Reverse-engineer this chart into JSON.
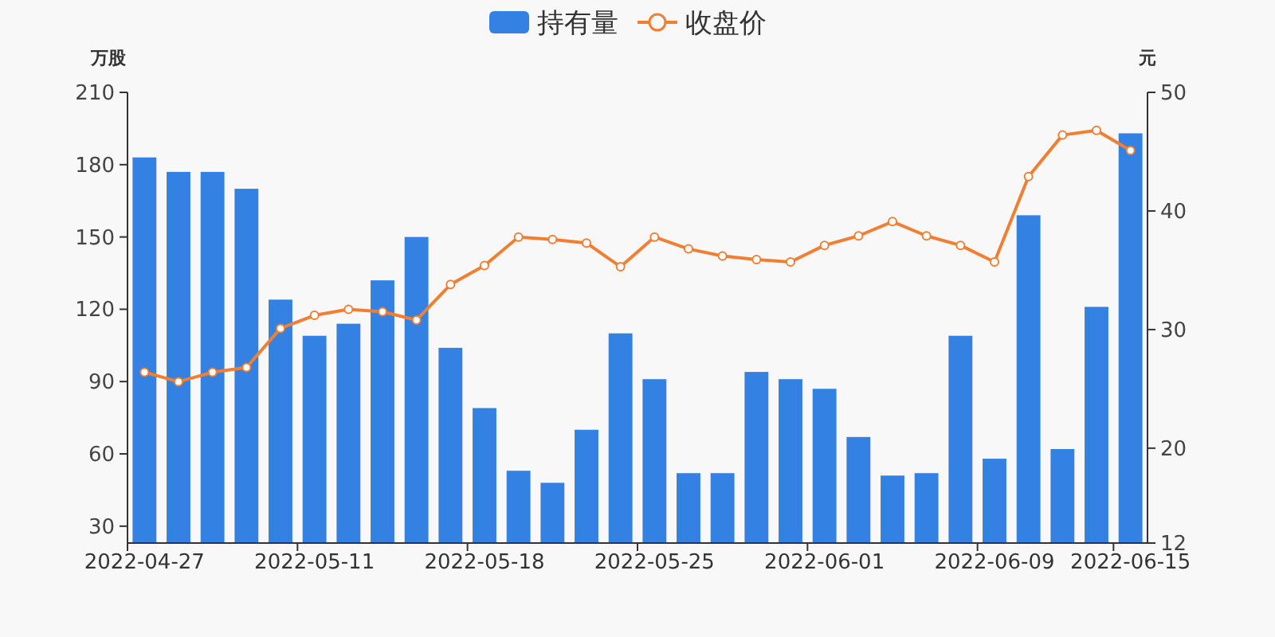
{
  "chart_data": {
    "type": "bar",
    "categories": [
      "2022-04-27",
      null,
      null,
      null,
      null,
      "2022-05-11",
      null,
      null,
      null,
      null,
      "2022-05-18",
      null,
      null,
      null,
      null,
      "2022-05-25",
      null,
      null,
      null,
      null,
      "2022-06-01",
      null,
      null,
      null,
      null,
      "2022-06-09",
      null,
      null,
      null,
      "2022-06-15"
    ],
    "series": [
      {
        "name": "持有量",
        "color": "#3381e3",
        "values": [
          183,
          177,
          177,
          170,
          124,
          109,
          114,
          132,
          150,
          104,
          79,
          53,
          48,
          70,
          110,
          91,
          52,
          52,
          94,
          91,
          87,
          67,
          51,
          52,
          109,
          58,
          159,
          62,
          121,
          193
        ]
      },
      {
        "name": "收盘价",
        "type": "line",
        "axis": "y2",
        "color": "#f07f34",
        "values": [
          26.4,
          25.6,
          26.4,
          26.8,
          30.1,
          31.2,
          31.7,
          31.5,
          30.8,
          33.8,
          35.4,
          37.8,
          37.6,
          37.3,
          35.3,
          37.8,
          36.8,
          36.2,
          35.9,
          35.7,
          37.1,
          37.9,
          39.1,
          37.9,
          37.1,
          35.7,
          42.9,
          46.4,
          46.8,
          45.1
        ]
      }
    ],
    "ylabel": "万股",
    "y2label": "元",
    "ylim": [
      23,
      210
    ],
    "yticks": [
      30,
      60,
      90,
      120,
      150,
      180,
      210
    ],
    "y2lim": [
      12,
      50
    ],
    "y2ticks": [
      12,
      20,
      30,
      40,
      50
    ],
    "legend": "top",
    "marker": "circle",
    "line_style": "solid",
    "grid": false
  }
}
